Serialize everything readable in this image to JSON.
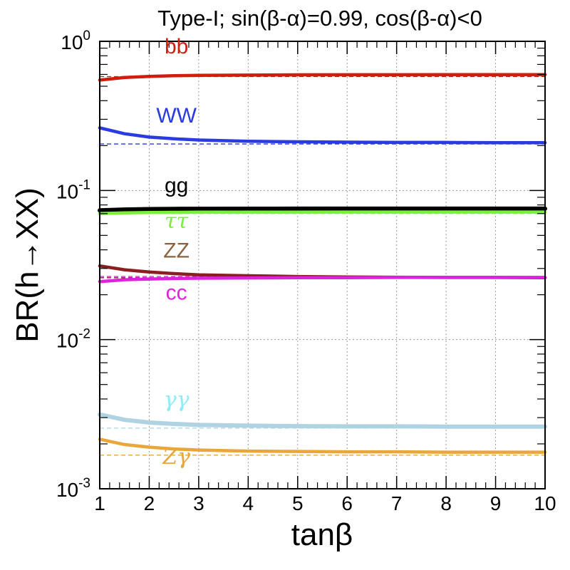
{
  "chart_data": {
    "type": "line",
    "title": "Type-I; sin(β-α)=0.99, cos(β-α)<0",
    "xlabel": "tanβ",
    "ylabel": "BR(h→XX)",
    "xscale": "linear",
    "yscale": "log",
    "xlim": [
      1,
      10
    ],
    "ylim": [
      0.001,
      1
    ],
    "grid": true,
    "x_ticks": [
      1,
      2,
      3,
      4,
      5,
      6,
      7,
      8,
      9,
      10
    ],
    "x_tick_labels": [
      "1",
      "2",
      "3",
      "4",
      "5",
      "6",
      "7",
      "8",
      "9",
      "10"
    ],
    "y_ticks": [
      {
        "value": 1,
        "base": "10",
        "exp": "0"
      },
      {
        "value": 0.1,
        "base": "10",
        "exp": "-1"
      },
      {
        "value": 0.01,
        "base": "10",
        "exp": "-2"
      },
      {
        "value": 0.001,
        "base": "10",
        "exp": "-3"
      }
    ],
    "x": [
      1,
      1.5,
      2,
      2.5,
      3,
      4,
      5,
      6,
      7,
      8,
      9,
      10
    ],
    "series": [
      {
        "name": "bb",
        "label": "bb",
        "color": "#d01d0e",
        "greek": false,
        "sm_reference": 0.58,
        "label_pos": {
          "x": 2.55,
          "y": 0.83
        },
        "values": [
          0.55,
          0.572,
          0.582,
          0.588,
          0.591,
          0.594,
          0.596,
          0.597,
          0.597,
          0.598,
          0.598,
          0.598
        ]
      },
      {
        "name": "WW",
        "label": "WW",
        "color": "#2a3be0",
        "greek": false,
        "sm_reference": 0.205,
        "label_pos": {
          "x": 2.55,
          "y": 0.285
        },
        "values": [
          0.263,
          0.24,
          0.228,
          0.222,
          0.218,
          0.214,
          0.212,
          0.211,
          0.21,
          0.21,
          0.209,
          0.209
        ]
      },
      {
        "name": "gg",
        "label": "gg",
        "color": "#000000",
        "greek": false,
        "sm_reference": 0.075,
        "label_pos": {
          "x": 2.55,
          "y": 0.097
        },
        "values": [
          0.0735,
          0.0745,
          0.075,
          0.0752,
          0.0753,
          0.0754,
          0.0755,
          0.0755,
          0.0755,
          0.0755,
          0.0755,
          0.0755
        ]
      },
      {
        "name": "tautau",
        "label": "ττ",
        "color": "#7cee3c",
        "greek": true,
        "sm_reference": 0.07,
        "label_pos": {
          "x": 2.55,
          "y": 0.056
        },
        "values": [
          0.07,
          0.0708,
          0.0712,
          0.0714,
          0.0715,
          0.0716,
          0.0716,
          0.0717,
          0.0717,
          0.0717,
          0.0717,
          0.0717
        ]
      },
      {
        "name": "ZZ",
        "label": "ZZ",
        "color": "#8a1f1f",
        "greek": false,
        "label_color": "#8b6240",
        "sm_reference": 0.026,
        "label_pos": {
          "x": 2.55,
          "y": 0.0355
        },
        "values": [
          0.0312,
          0.0294,
          0.0284,
          0.0277,
          0.0272,
          0.0268,
          0.0265,
          0.0263,
          0.0262,
          0.0261,
          0.0261,
          0.026
        ]
      },
      {
        "name": "cc",
        "label": "cc",
        "color": "#dd24dc",
        "greek": false,
        "sm_reference": 0.0265,
        "label_pos": {
          "x": 2.55,
          "y": 0.0185
        },
        "values": [
          0.0245,
          0.0252,
          0.0255,
          0.0257,
          0.0258,
          0.0259,
          0.026,
          0.026,
          0.0261,
          0.0261,
          0.0261,
          0.0261
        ]
      },
      {
        "name": "gammagamma",
        "label": "γγ",
        "color": "#afd3e3",
        "greek": true,
        "label_color": "#8cecfb",
        "sm_reference": 0.00255,
        "label_pos": {
          "x": 2.55,
          "y": 0.00355
        },
        "values": [
          0.00315,
          0.0029,
          0.00278,
          0.00272,
          0.00268,
          0.00265,
          0.00263,
          0.00262,
          0.00262,
          0.00261,
          0.00261,
          0.00261
        ]
      },
      {
        "name": "Zgamma",
        "label": "Zγ",
        "color": "#e9a63a",
        "greek": true,
        "sm_reference": 0.00168,
        "label_pos": {
          "x": 2.55,
          "y": 0.00147
        },
        "values": [
          0.00215,
          0.00198,
          0.0019,
          0.00185,
          0.00182,
          0.00179,
          0.00178,
          0.00177,
          0.00177,
          0.00176,
          0.00176,
          0.00176
        ]
      }
    ]
  }
}
